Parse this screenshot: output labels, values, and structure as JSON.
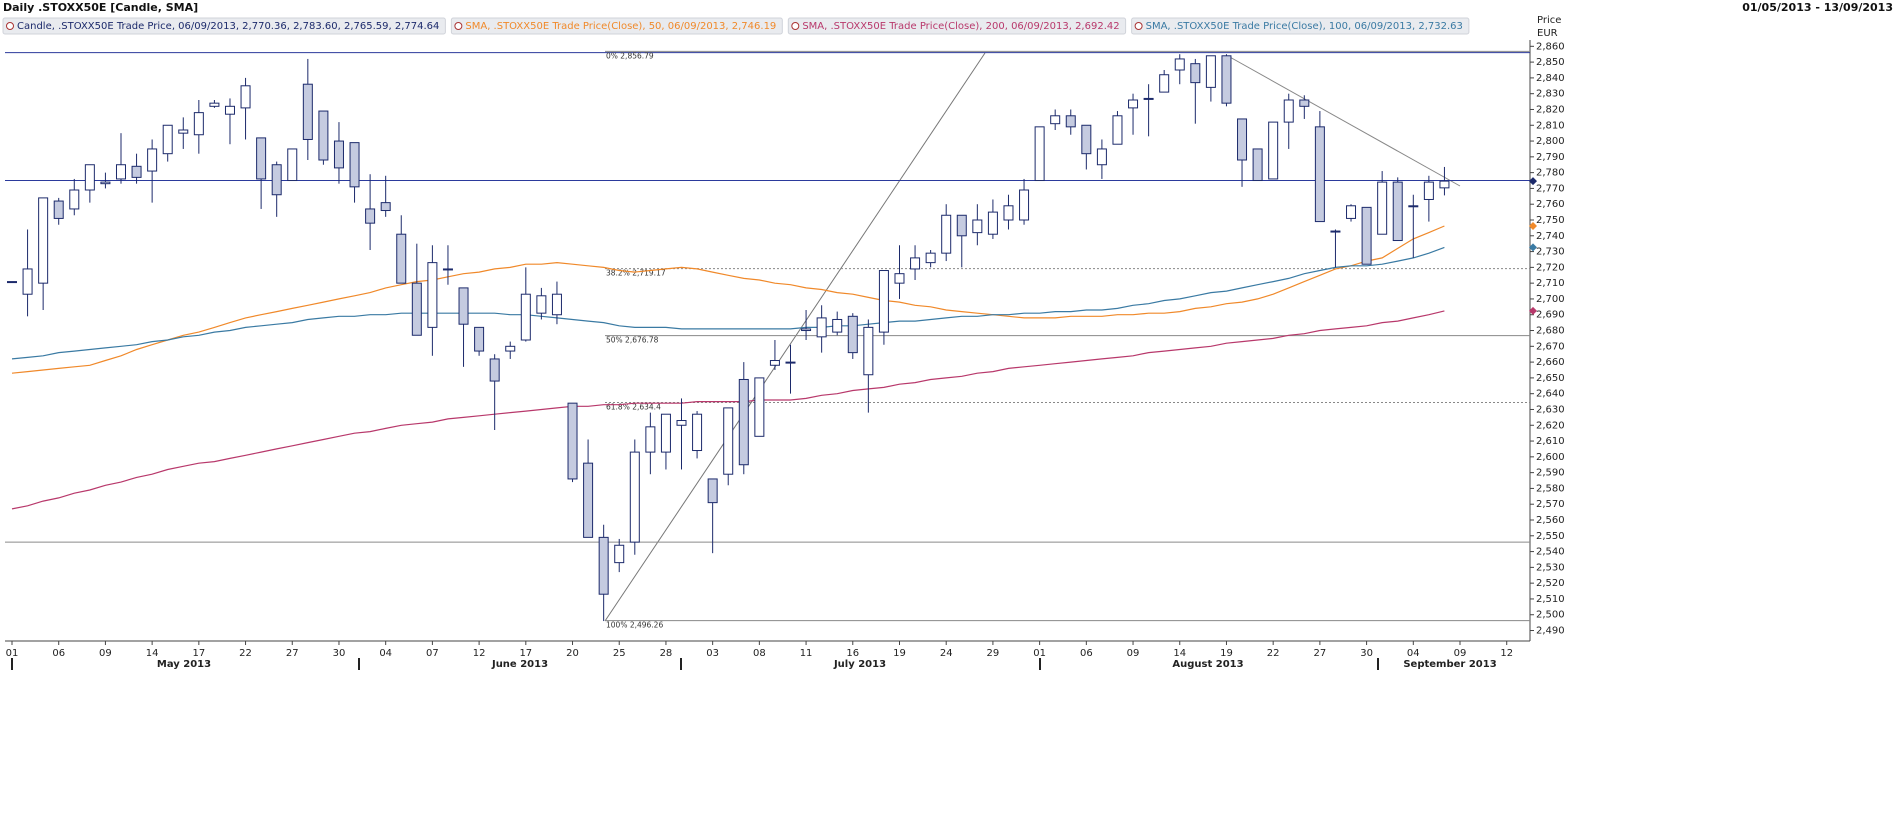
{
  "chart_data": {
    "type": "candlestick",
    "title": "Daily .STOXX50E [Candle, SMA]",
    "date_range": "01/05/2013 - 13/09/2013",
    "ylabel": "Price",
    "yunit": "EUR",
    "candle_legend": "Candle, .STOXX50E Trade Price, 06/09/2013, 2,770.36, 2,783.60, 2,765.59, 2,774.64",
    "candle_color": "#1c2a6b",
    "months": [
      "May 2013",
      "June 2013",
      "July 2013",
      "August 2013",
      "September 2013"
    ],
    "categories": [
      "01",
      null,
      null,
      "06",
      null,
      null,
      "09",
      null,
      null,
      "14",
      null,
      null,
      "17",
      null,
      null,
      "22",
      null,
      null,
      "27",
      null,
      null,
      "30",
      null,
      null,
      "04",
      null,
      null,
      "07",
      null,
      null,
      "12",
      null,
      null,
      "17",
      null,
      null,
      "20",
      null,
      null,
      "25",
      null,
      null,
      "28",
      null,
      null,
      "03",
      null,
      null,
      "08",
      null,
      null,
      "11",
      null,
      null,
      "16",
      null,
      null,
      "19",
      null,
      null,
      "24",
      null,
      null,
      "29",
      null,
      null,
      "01",
      null,
      null,
      "06",
      null,
      null,
      "09",
      null,
      null,
      "14",
      null,
      null,
      "19",
      null,
      null,
      "22",
      null,
      null,
      "27",
      null,
      null,
      "30",
      null,
      null,
      "04",
      null,
      null,
      "09",
      null,
      null,
      "12",
      null
    ],
    "open": [
      2711,
      2703,
      2710,
      2762,
      2757,
      2769,
      2773,
      2776,
      2784,
      2781,
      2792,
      2805,
      2804,
      2822,
      2817,
      2821,
      2802,
      2785,
      2775,
      2836,
      2819,
      2800,
      2799,
      2757,
      2761,
      2741,
      2710,
      2682,
      2719,
      2707,
      2682,
      2662,
      2667,
      2674,
      2691,
      2690,
      2634,
      2596,
      2549,
      2533,
      2546,
      2603,
      2603,
      2620,
      2604,
      2586,
      2589,
      2649,
      2613,
      2658,
      2660,
      2680,
      2676,
      2679,
      2689,
      2652,
      2679,
      2710,
      2719,
      2723,
      2729,
      2753,
      2742,
      2741,
      2750,
      2750,
      2775,
      2811,
      2816,
      2810,
      2785,
      2798,
      2821,
      2827,
      2831,
      2845,
      2849,
      2834,
      2854,
      2814,
      2795,
      2776,
      2812,
      2826,
      2809,
      2743,
      2751,
      2758,
      2741,
      2774,
      2759,
      2763,
      2770.36,
      null,
      null,
      null,
      null,
      null
    ],
    "high": [
      2711,
      2744,
      2764,
      2764,
      2776,
      2785,
      2780,
      2805,
      2792,
      2801,
      2810,
      2815,
      2826,
      2826,
      2827,
      2840,
      2802,
      2787,
      2795,
      2852,
      2819,
      2812,
      2799,
      2779,
      2778,
      2753,
      2735,
      2734,
      2734,
      2707,
      2682,
      2665,
      2673,
      2720,
      2707,
      2711,
      2634,
      2611,
      2557,
      2548,
      2611,
      2628,
      2627,
      2637,
      2629,
      2586,
      2631,
      2660,
      2650,
      2674,
      2671,
      2693,
      2696,
      2692,
      2691,
      2687,
      2718,
      2734,
      2734,
      2731,
      2760,
      2753,
      2760,
      2763,
      2766,
      2776,
      2809,
      2820,
      2820,
      2810,
      2801,
      2819,
      2830,
      2836,
      2845,
      2855,
      2852,
      2854,
      2855,
      2814,
      2795,
      2812,
      2830,
      2829,
      2819,
      2744,
      2760,
      2758,
      2781,
      2777,
      2766,
      2778,
      2783.6,
      null,
      null,
      null,
      null,
      null
    ],
    "low": [
      2711,
      2689,
      2693,
      2747,
      2753,
      2761,
      2770,
      2773,
      2773,
      2761,
      2787,
      2795,
      2792,
      2821,
      2798,
      2801,
      2757,
      2752,
      2775,
      2788,
      2785,
      2773,
      2761,
      2731,
      2752,
      2710,
      2677,
      2664,
      2709,
      2657,
      2664,
      2617,
      2662,
      2673,
      2687,
      2684,
      2584,
      2549,
      2496,
      2527,
      2538,
      2589,
      2592,
      2592,
      2599,
      2539,
      2582,
      2589,
      2613,
      2655,
      2640,
      2674,
      2666,
      2677,
      2662,
      2628,
      2671,
      2700,
      2712,
      2720,
      2724,
      2720,
      2734,
      2738,
      2744,
      2747,
      2775,
      2807,
      2804,
      2782,
      2776,
      2798,
      2804,
      2803,
      2831,
      2836,
      2811,
      2825,
      2822,
      2771,
      2775,
      2776,
      2795,
      2814,
      2749,
      2720,
      2749,
      2722,
      2741,
      2737,
      2726,
      2749,
      2765.59,
      null,
      null,
      null,
      null,
      null
    ],
    "close": [
      2711,
      2719,
      2764,
      2751,
      2769,
      2785,
      2774,
      2785,
      2777,
      2795,
      2810,
      2807,
      2818,
      2824,
      2822,
      2835,
      2776,
      2766,
      2795,
      2801,
      2788,
      2783,
      2771,
      2748,
      2756,
      2710,
      2677,
      2723,
      2719,
      2684,
      2667,
      2648,
      2670,
      2703,
      2702,
      2703,
      2586,
      2549,
      2513,
      2544,
      2603,
      2619,
      2627,
      2623,
      2627,
      2571,
      2631,
      2595,
      2650,
      2661,
      2660,
      2681,
      2688,
      2687,
      2666,
      2682,
      2718,
      2716,
      2726,
      2729,
      2753,
      2740,
      2750,
      2755,
      2759,
      2769,
      2809,
      2816,
      2809,
      2792,
      2795,
      2816,
      2826,
      2827,
      2842,
      2852,
      2837,
      2854,
      2824,
      2788,
      2775,
      2812,
      2826,
      2822,
      2749,
      2743,
      2759,
      2722,
      2774,
      2737,
      2759,
      2774,
      2774.64,
      null,
      null,
      null,
      null,
      null
    ],
    "series": [
      {
        "name": "SMA, .STOXX50E Trade Price(Close), 50, 06/09/2013, 2,746.19",
        "color": "#f0892a",
        "values": [
          2653,
          2654,
          2655,
          2656,
          2657,
          2658,
          2661,
          2664,
          2668,
          2671,
          2674,
          2677,
          2679,
          2682,
          2685,
          2688,
          2690,
          2692,
          2694,
          2696,
          2698,
          2700,
          2702,
          2704,
          2707,
          2709,
          2711,
          2712,
          2714,
          2716,
          2717,
          2719,
          2720,
          2722,
          2722,
          2723,
          2722,
          2721,
          2720,
          2718,
          2717,
          2718,
          2719,
          2720,
          2719,
          2717,
          2715,
          2713,
          2712,
          2710,
          2709,
          2707,
          2706,
          2704,
          2703,
          2701,
          2699,
          2698,
          2696,
          2695,
          2693,
          2692,
          2691,
          2690,
          2689,
          2688,
          2688,
          2688,
          2689,
          2689,
          2689,
          2690,
          2690,
          2691,
          2691,
          2692,
          2694,
          2695,
          2697,
          2698,
          2700,
          2703,
          2707,
          2711,
          2715,
          2719,
          2721,
          2724,
          2726,
          2732,
          2738,
          2742,
          2746.19,
          null,
          null,
          null,
          null,
          null
        ]
      },
      {
        "name": "SMA, .STOXX50E Trade Price(Close), 200, 06/09/2013, 2,692.42",
        "color": "#b8386b",
        "values": [
          2567,
          2569,
          2572,
          2574,
          2577,
          2579,
          2582,
          2584,
          2587,
          2589,
          2592,
          2594,
          2596,
          2597,
          2599,
          2601,
          2603,
          2605,
          2607,
          2609,
          2611,
          2613,
          2615,
          2616,
          2618,
          2620,
          2621,
          2622,
          2624,
          2625,
          2626,
          2627,
          2628,
          2629,
          2630,
          2631,
          2632,
          2632,
          2633,
          2633,
          2634,
          2634,
          2634,
          2634,
          2635,
          2635,
          2635,
          2635,
          2636,
          2636,
          2636,
          2637,
          2639,
          2640,
          2642,
          2643,
          2644,
          2646,
          2647,
          2649,
          2650,
          2651,
          2653,
          2654,
          2656,
          2657,
          2658,
          2659,
          2660,
          2661,
          2662,
          2663,
          2664,
          2666,
          2667,
          2668,
          2669,
          2670,
          2672,
          2673,
          2674,
          2675,
          2677,
          2678,
          2680,
          2681,
          2682,
          2683,
          2685,
          2686,
          2688,
          2690,
          2692.42,
          null,
          null,
          null,
          null,
          null
        ]
      },
      {
        "name": "SMA, .STOXX50E Trade Price(Close), 100, 06/09/2013, 2,732.63",
        "color": "#3a7aa3",
        "values": [
          2662,
          2663,
          2664,
          2666,
          2667,
          2668,
          2669,
          2670,
          2671,
          2673,
          2674,
          2676,
          2677,
          2679,
          2680,
          2682,
          2683,
          2684,
          2685,
          2687,
          2688,
          2689,
          2689,
          2690,
          2690,
          2691,
          2691,
          2691,
          2691,
          2691,
          2691,
          2691,
          2690,
          2690,
          2689,
          2688,
          2687,
          2686,
          2685,
          2683,
          2682,
          2682,
          2682,
          2681,
          2681,
          2681,
          2681,
          2681,
          2681,
          2681,
          2681,
          2682,
          2682,
          2683,
          2683,
          2684,
          2685,
          2686,
          2686,
          2687,
          2688,
          2689,
          2689,
          2690,
          2690,
          2691,
          2691,
          2692,
          2692,
          2693,
          2693,
          2694,
          2696,
          2697,
          2699,
          2700,
          2702,
          2704,
          2705,
          2707,
          2709,
          2711,
          2713,
          2716,
          2718,
          2720,
          2721,
          2721,
          2722,
          2724,
          2726,
          2729,
          2732.63,
          null,
          null,
          null,
          null,
          null
        ]
      }
    ],
    "hlines": [
      {
        "value": 2856,
        "color": "#2b3a9c"
      },
      {
        "value": 2775,
        "color": "#2b3a9c"
      },
      {
        "value": 2546,
        "color": "#8a8a8a"
      }
    ],
    "fib_levels": [
      {
        "label": "0% 2,856.79",
        "value": 2856.79,
        "style": "solid"
      },
      {
        "label": "38.2% 2,719.17",
        "value": 2719.17,
        "style": "dotted"
      },
      {
        "label": "50% 2,676.78",
        "value": 2676.78,
        "style": "solid"
      },
      {
        "label": "61.8% 2,634.4",
        "value": 2634.4,
        "style": "dotted"
      },
      {
        "label": "100% 2,496.26",
        "value": 2496.26,
        "style": "solid"
      }
    ],
    "ylim": [
      2484,
      2864
    ],
    "yticks": [
      {
        "value": 2490,
        "label": "2,490"
      },
      {
        "value": 2500,
        "label": "2,500"
      },
      {
        "value": 2510,
        "label": "2,510"
      },
      {
        "value": 2520,
        "label": "2,520"
      },
      {
        "value": 2530,
        "label": "2,530"
      },
      {
        "value": 2540,
        "label": "2,540"
      },
      {
        "value": 2550,
        "label": "2,550"
      },
      {
        "value": 2560,
        "label": "2,560"
      },
      {
        "value": 2570,
        "label": "2,570"
      },
      {
        "value": 2580,
        "label": "2,580"
      },
      {
        "value": 2590,
        "label": "2,590"
      },
      {
        "value": 2600,
        "label": "2,600"
      },
      {
        "value": 2610,
        "label": "2,610"
      },
      {
        "value": 2620,
        "label": "2,620"
      },
      {
        "value": 2630,
        "label": "2,630"
      },
      {
        "value": 2640,
        "label": "2,640"
      },
      {
        "value": 2650,
        "label": "2,650"
      },
      {
        "value": 2660,
        "label": "2,660"
      },
      {
        "value": 2670,
        "label": "2,670"
      },
      {
        "value": 2680,
        "label": "2,680"
      },
      {
        "value": 2690,
        "label": "2,690"
      },
      {
        "value": 2700,
        "label": "2,700"
      },
      {
        "value": 2710,
        "label": "2,710"
      },
      {
        "value": 2720,
        "label": "2,720"
      },
      {
        "value": 2730,
        "label": "2,730"
      },
      {
        "value": 2740,
        "label": "2,740"
      },
      {
        "value": 2750,
        "label": "2,750"
      },
      {
        "value": 2760,
        "label": "2,760"
      },
      {
        "value": 2770,
        "label": "2,770"
      },
      {
        "value": 2780,
        "label": "2,780"
      },
      {
        "value": 2790,
        "label": "2,790"
      },
      {
        "value": 2800,
        "label": "2,800"
      },
      {
        "value": 2810,
        "label": "2,810"
      },
      {
        "value": 2820,
        "label": "2,820"
      },
      {
        "value": 2830,
        "label": "2,830"
      },
      {
        "value": 2840,
        "label": "2,840"
      },
      {
        "value": 2850,
        "label": "2,850"
      },
      {
        "value": 2860,
        "label": "2,860"
      }
    ],
    "grid": false
  }
}
